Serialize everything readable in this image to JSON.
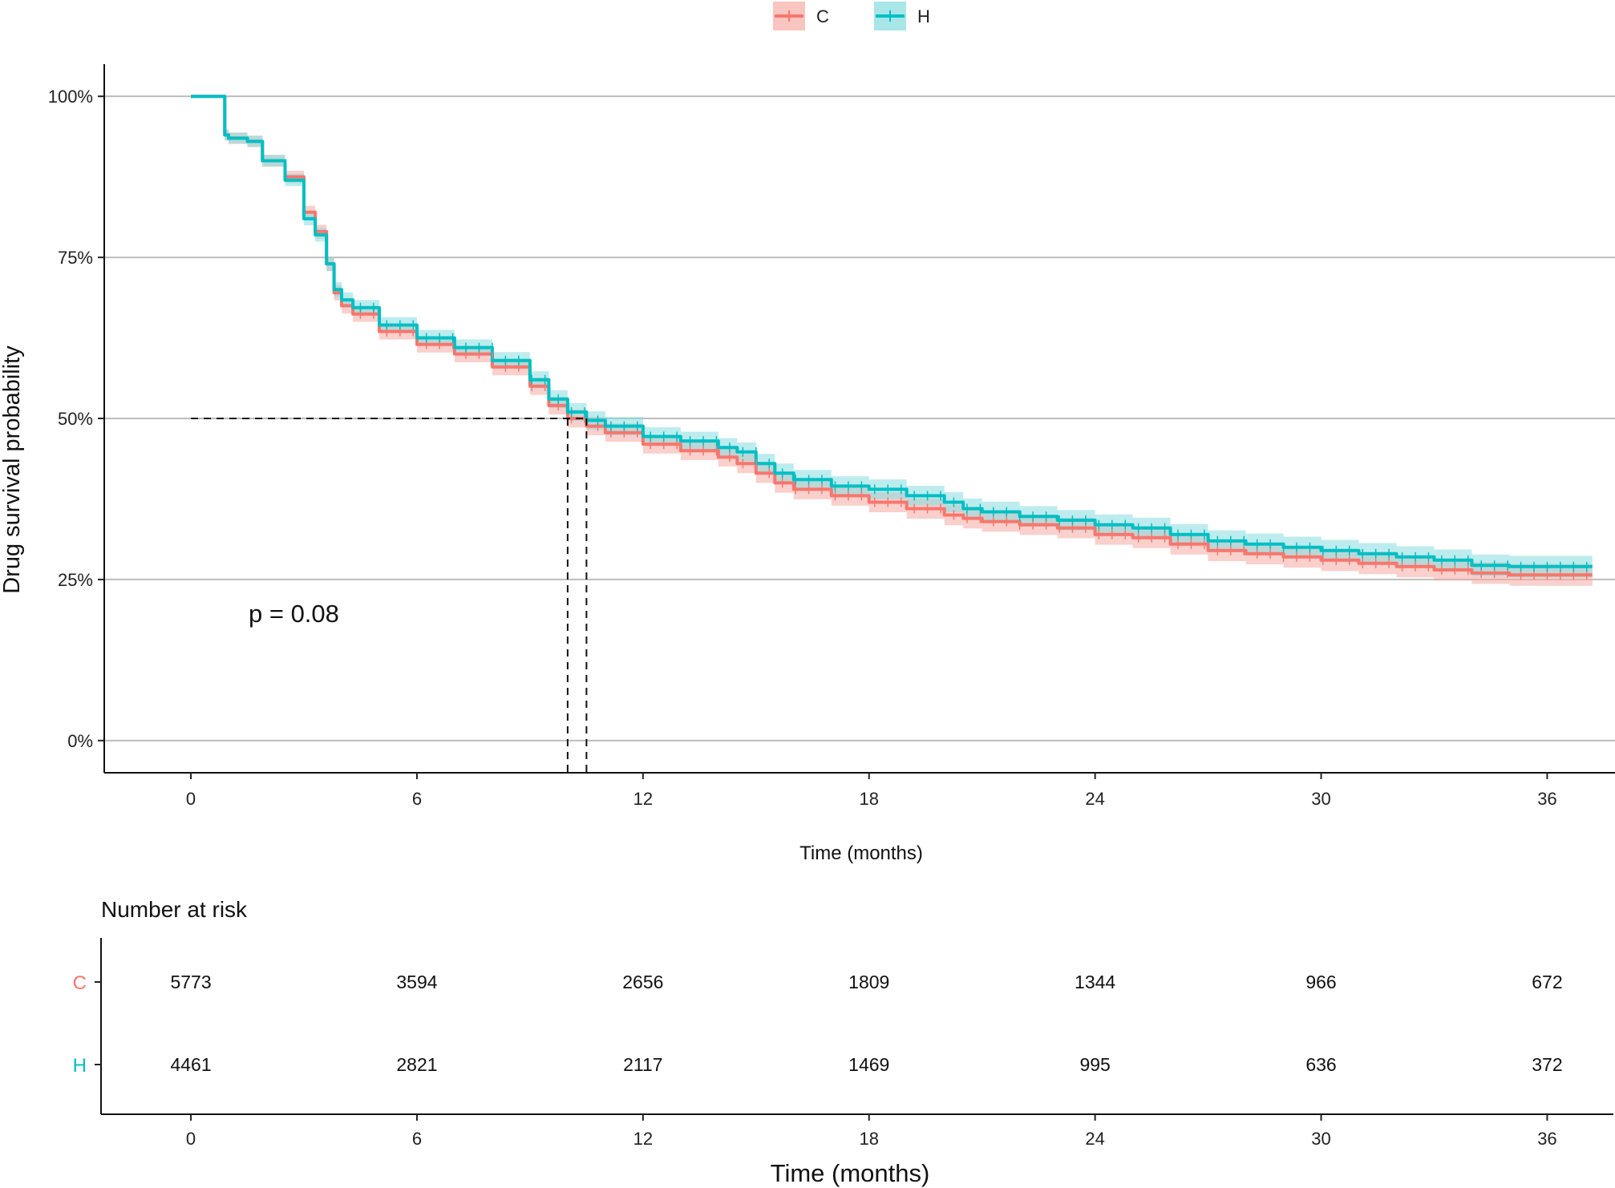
{
  "chart_data": {
    "type": "line",
    "subtype": "kaplan-meier",
    "ylabel": "Drug survival probability",
    "xlabel": "Time (months)",
    "xlim": [
      -2.3,
      37.8
    ],
    "ylim": [
      -0.05,
      1.05
    ],
    "x_ticks": [
      0,
      6,
      12,
      18,
      24,
      30,
      36
    ],
    "x_tick_labels": [
      "0",
      "6",
      "12",
      "18",
      "24",
      "30",
      "36"
    ],
    "y_ticks": [
      0,
      0.25,
      0.5,
      0.75,
      1.0
    ],
    "y_tick_labels": [
      "0%",
      "25%",
      "50%",
      "75%",
      "100%"
    ],
    "grid": "horizontal",
    "legend": {
      "position": "top",
      "entries": [
        "C",
        "H"
      ]
    },
    "annotation": "p = 0.08",
    "median_line": {
      "y": 0.5,
      "medians": [
        10.0,
        10.5
      ]
    },
    "series": [
      {
        "name": "C",
        "color": "#F8766D",
        "band_color": "#F4A9A3",
        "x": [
          0,
          0.9,
          0.9,
          1.0,
          1.5,
          1.9,
          2.5,
          3.0,
          3.3,
          3.6,
          3.8,
          4.0,
          4.3,
          5.0,
          6.0,
          7.0,
          8.0,
          9.0,
          9.5,
          10.0,
          10.5,
          11.0,
          12.0,
          13.0,
          14.0,
          14.5,
          15.0,
          15.5,
          16.0,
          17.0,
          18.0,
          19.0,
          20.0,
          20.5,
          21.0,
          22.0,
          23.0,
          24.0,
          25.0,
          26.0,
          27.0,
          28.0,
          29.0,
          30.0,
          31.0,
          32.0,
          33.0,
          34.0,
          35.0,
          36.0,
          37.2
        ],
        "y": [
          1.0,
          1.0,
          0.94,
          0.935,
          0.93,
          0.9,
          0.875,
          0.82,
          0.79,
          0.74,
          0.695,
          0.675,
          0.662,
          0.635,
          0.615,
          0.6,
          0.58,
          0.55,
          0.52,
          0.5,
          0.488,
          0.478,
          0.46,
          0.45,
          0.44,
          0.43,
          0.415,
          0.4,
          0.39,
          0.38,
          0.37,
          0.36,
          0.35,
          0.345,
          0.34,
          0.335,
          0.33,
          0.32,
          0.315,
          0.305,
          0.295,
          0.29,
          0.285,
          0.28,
          0.275,
          0.27,
          0.265,
          0.26,
          0.257,
          0.257,
          0.257
        ]
      },
      {
        "name": "H",
        "color": "#00BFC4",
        "band_color": "#86DDE0",
        "x": [
          0,
          0.9,
          0.9,
          1.0,
          1.5,
          1.9,
          2.5,
          3.0,
          3.3,
          3.6,
          3.8,
          4.0,
          4.3,
          5.0,
          6.0,
          7.0,
          8.0,
          9.0,
          9.5,
          10.0,
          10.5,
          11.0,
          12.0,
          13.0,
          14.0,
          14.5,
          15.0,
          15.5,
          16.0,
          17.0,
          18.0,
          19.0,
          20.0,
          20.5,
          21.0,
          22.0,
          23.0,
          24.0,
          25.0,
          26.0,
          27.0,
          28.0,
          29.0,
          30.0,
          31.0,
          32.0,
          33.0,
          34.0,
          35.0,
          36.0,
          37.2
        ],
        "y": [
          1.0,
          1.0,
          0.94,
          0.935,
          0.93,
          0.9,
          0.87,
          0.81,
          0.785,
          0.74,
          0.7,
          0.684,
          0.672,
          0.645,
          0.625,
          0.61,
          0.59,
          0.56,
          0.53,
          0.51,
          0.497,
          0.488,
          0.472,
          0.465,
          0.455,
          0.448,
          0.43,
          0.415,
          0.405,
          0.395,
          0.39,
          0.38,
          0.37,
          0.36,
          0.355,
          0.348,
          0.342,
          0.335,
          0.33,
          0.32,
          0.31,
          0.305,
          0.3,
          0.295,
          0.29,
          0.285,
          0.28,
          0.272,
          0.27,
          0.27,
          0.27
        ]
      }
    ],
    "risk_table": {
      "title": "Number at risk",
      "xlabel": "Time (months)",
      "times": [
        0,
        6,
        12,
        18,
        24,
        30,
        36
      ],
      "time_labels": [
        "0",
        "6",
        "12",
        "18",
        "24",
        "30",
        "36"
      ],
      "rows": [
        {
          "name": "C",
          "color": "#F8766D",
          "values": [
            "5773",
            "3594",
            "2656",
            "1809",
            "1344",
            "966",
            "672"
          ]
        },
        {
          "name": "H",
          "color": "#00BFC4",
          "values": [
            "4461",
            "2821",
            "2117",
            "1469",
            "995",
            "636",
            "372"
          ]
        }
      ]
    }
  }
}
